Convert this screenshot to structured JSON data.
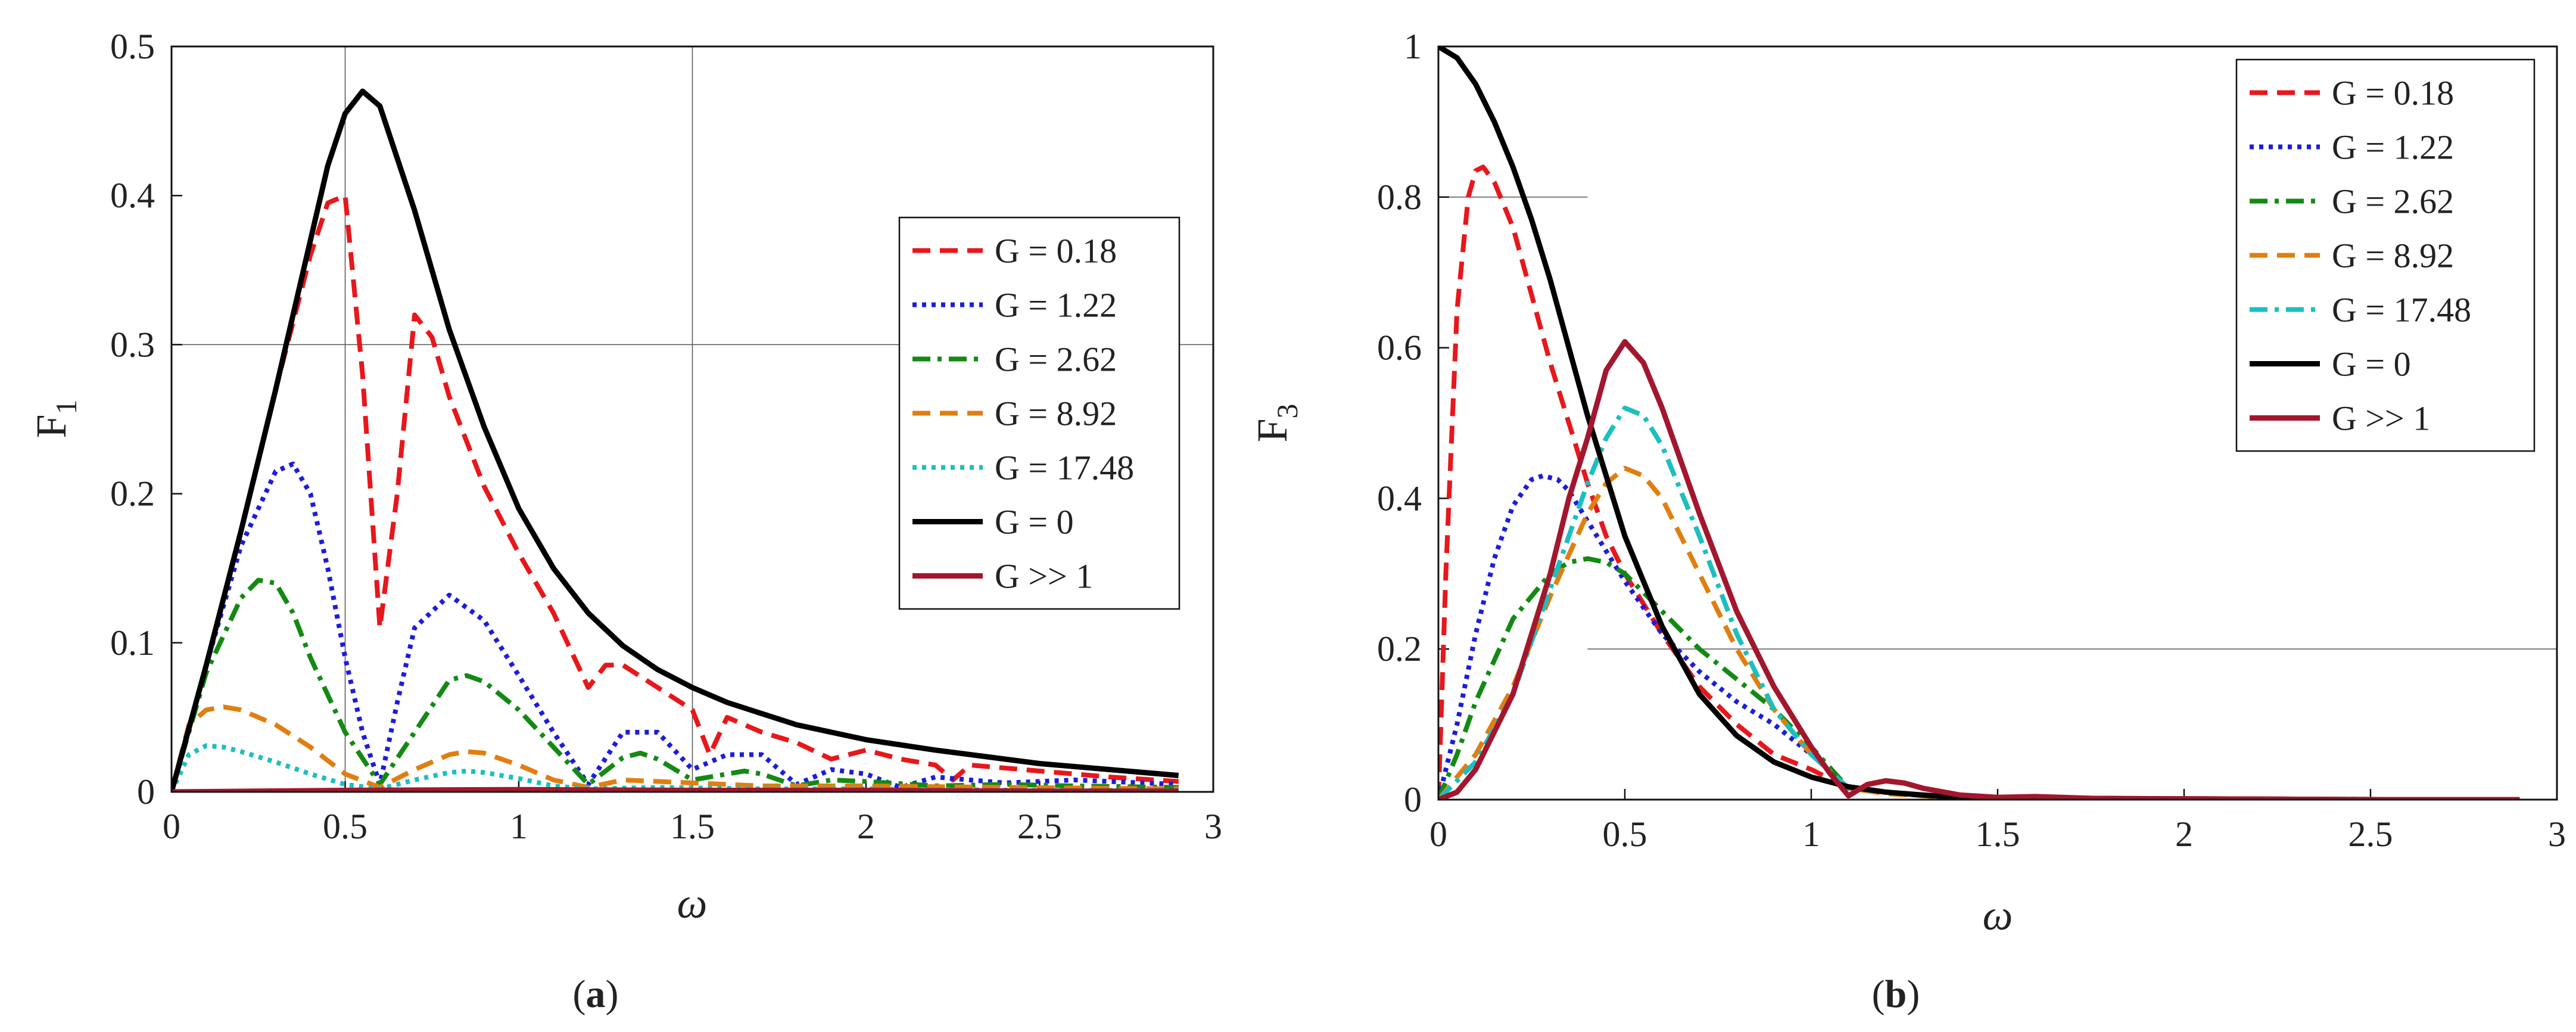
{
  "chart_data": [
    {
      "type": "line",
      "panel": "a",
      "caption_open": "(",
      "caption_letter": "a",
      "caption_close": ")",
      "xlabel": "ω",
      "ylabel_main": "F",
      "ylabel_sub": "1",
      "xlim": [
        0,
        3
      ],
      "ylim": [
        0,
        0.5
      ],
      "xticks": [
        0,
        0.5,
        1,
        1.5,
        2,
        2.5,
        3
      ],
      "xtick_labels": [
        "0",
        "0.5",
        "1",
        "1.5",
        "2",
        "2.5",
        "3"
      ],
      "yticks": [
        0,
        0.1,
        0.2,
        0.3,
        0.4,
        0.5
      ],
      "ytick_labels": [
        "0",
        "0.1",
        "0.2",
        "0.3",
        "0.4",
        "0.5"
      ],
      "grid": {
        "vertical_at": [
          0.5,
          1.5
        ],
        "horizontal_at": [
          0.3
        ]
      },
      "legend_position": "right",
      "series": [
        {
          "name": "G = 0.18",
          "color": "#e8171b",
          "dash": "dashed",
          "x": [
            0,
            0.1,
            0.2,
            0.3,
            0.4,
            0.45,
            0.5,
            0.55,
            0.6,
            0.65,
            0.7,
            0.75,
            0.8,
            0.9,
            1.0,
            1.1,
            1.2,
            1.25,
            1.3,
            1.4,
            1.5,
            1.55,
            1.6,
            1.7,
            1.8,
            1.9,
            2.0,
            2.1,
            2.2,
            2.25,
            2.3,
            2.5,
            2.7,
            2.9
          ],
          "y": [
            0,
            0.085,
            0.175,
            0.27,
            0.36,
            0.395,
            0.4,
            0.28,
            0.11,
            0.2,
            0.32,
            0.305,
            0.265,
            0.205,
            0.16,
            0.12,
            0.07,
            0.085,
            0.085,
            0.07,
            0.055,
            0.025,
            0.05,
            0.04,
            0.033,
            0.022,
            0.028,
            0.022,
            0.018,
            0.008,
            0.018,
            0.014,
            0.01,
            0.007
          ]
        },
        {
          "name": "G = 1.22",
          "color": "#1c1ce0",
          "dash": "dotted",
          "x": [
            0,
            0.1,
            0.2,
            0.3,
            0.35,
            0.4,
            0.45,
            0.5,
            0.55,
            0.6,
            0.65,
            0.7,
            0.8,
            0.9,
            1.0,
            1.1,
            1.2,
            1.3,
            1.4,
            1.5,
            1.6,
            1.7,
            1.8,
            1.9,
            2.0,
            2.1,
            2.2,
            2.4,
            2.6,
            2.9
          ],
          "y": [
            0,
            0.085,
            0.165,
            0.215,
            0.22,
            0.2,
            0.15,
            0.09,
            0.04,
            0.005,
            0.06,
            0.11,
            0.132,
            0.115,
            0.078,
            0.04,
            0.005,
            0.04,
            0.04,
            0.015,
            0.025,
            0.025,
            0.005,
            0.015,
            0.012,
            0.003,
            0.01,
            0.006,
            0.008,
            0.005
          ]
        },
        {
          "name": "G = 2.62",
          "color": "#138a13",
          "dash": "dashdot",
          "x": [
            0,
            0.1,
            0.2,
            0.25,
            0.3,
            0.35,
            0.4,
            0.5,
            0.6,
            0.7,
            0.8,
            0.85,
            0.9,
            1.0,
            1.1,
            1.2,
            1.3,
            1.35,
            1.4,
            1.5,
            1.6,
            1.65,
            1.7,
            1.8,
            1.9,
            2.0,
            2.2,
            2.4,
            2.6,
            2.9
          ],
          "y": [
            0,
            0.08,
            0.13,
            0.142,
            0.14,
            0.12,
            0.09,
            0.04,
            0.005,
            0.04,
            0.075,
            0.078,
            0.074,
            0.055,
            0.03,
            0.005,
            0.023,
            0.026,
            0.022,
            0.008,
            0.012,
            0.014,
            0.012,
            0.004,
            0.008,
            0.007,
            0.004,
            0.005,
            0.004,
            0.003
          ]
        },
        {
          "name": "G = 8.92",
          "color": "#e07f10",
          "dash": "dashed",
          "x": [
            0,
            0.05,
            0.1,
            0.15,
            0.2,
            0.3,
            0.4,
            0.5,
            0.6,
            0.7,
            0.8,
            0.85,
            0.9,
            1.0,
            1.1,
            1.2,
            1.3,
            1.5,
            1.7,
            2.0,
            2.4,
            2.9
          ],
          "y": [
            0,
            0.045,
            0.055,
            0.057,
            0.055,
            0.045,
            0.03,
            0.012,
            0.003,
            0.015,
            0.025,
            0.027,
            0.026,
            0.018,
            0.008,
            0.003,
            0.008,
            0.006,
            0.004,
            0.004,
            0.003,
            0.002
          ]
        },
        {
          "name": "G = 17.48",
          "color": "#1cbfbf",
          "dash": "dotted",
          "x": [
            0,
            0.05,
            0.1,
            0.15,
            0.2,
            0.3,
            0.4,
            0.5,
            0.6,
            0.7,
            0.8,
            0.85,
            0.9,
            1.0,
            1.1,
            1.2,
            1.4,
            1.7,
            2.0,
            2.5,
            2.9
          ],
          "y": [
            0,
            0.025,
            0.031,
            0.03,
            0.027,
            0.02,
            0.012,
            0.005,
            0.002,
            0.008,
            0.013,
            0.014,
            0.013,
            0.009,
            0.004,
            0.002,
            0.003,
            0.002,
            0.002,
            0.001,
            0.001
          ]
        },
        {
          "name": "G = 0",
          "color": "#000000",
          "dash": "solid",
          "x": [
            0,
            0.1,
            0.2,
            0.3,
            0.4,
            0.45,
            0.5,
            0.55,
            0.6,
            0.7,
            0.8,
            0.9,
            1.0,
            1.1,
            1.2,
            1.3,
            1.4,
            1.5,
            1.6,
            1.8,
            2.0,
            2.2,
            2.5,
            2.9
          ],
          "y": [
            0,
            0.085,
            0.175,
            0.27,
            0.37,
            0.42,
            0.455,
            0.47,
            0.46,
            0.39,
            0.31,
            0.245,
            0.19,
            0.15,
            0.12,
            0.098,
            0.082,
            0.07,
            0.06,
            0.045,
            0.035,
            0.028,
            0.019,
            0.011
          ]
        },
        {
          "name": "G >> 1",
          "color": "#a3172e",
          "dash": "solid",
          "x": [
            0,
            0.5,
            1.0,
            1.5,
            2.0,
            2.5,
            2.9
          ],
          "y": [
            0,
            0.001,
            0.0015,
            0.001,
            0.001,
            0.0005,
            0.0005
          ]
        }
      ]
    },
    {
      "type": "line",
      "panel": "b",
      "caption_open": "(",
      "caption_letter": "b",
      "caption_close": ")",
      "xlabel": "ω",
      "ylabel_main": "F",
      "ylabel_sub": "3",
      "xlim": [
        0,
        3
      ],
      "ylim": [
        0,
        1
      ],
      "xticks": [
        0,
        0.5,
        1,
        1.5,
        2,
        2.5,
        3
      ],
      "xtick_labels": [
        "0",
        "0.5",
        "1",
        "1.5",
        "2",
        "2.5",
        "3"
      ],
      "yticks": [
        0,
        0.2,
        0.4,
        0.6,
        0.8,
        1
      ],
      "ytick_labels": [
        "0",
        "0.2",
        "0.4",
        "0.6",
        "0.8",
        "1"
      ],
      "grid": {
        "partial_lines": [
          {
            "y": 0.8,
            "x_from": 0,
            "x_to": 0.4
          },
          {
            "y": 0.2,
            "x_from": 0.4,
            "x_to": 3
          }
        ]
      },
      "legend_position": "top-right",
      "series": [
        {
          "name": "G = 0.18",
          "color": "#e8171b",
          "dash": "dashed",
          "x": [
            0,
            0.02,
            0.05,
            0.08,
            0.1,
            0.12,
            0.15,
            0.2,
            0.25,
            0.3,
            0.35,
            0.4,
            0.45,
            0.5,
            0.6,
            0.7,
            0.8,
            0.9,
            1.0,
            1.1,
            1.2,
            1.3,
            1.5,
            2.0,
            2.9
          ],
          "y": [
            0,
            0.3,
            0.65,
            0.8,
            0.835,
            0.84,
            0.82,
            0.76,
            0.67,
            0.58,
            0.5,
            0.42,
            0.35,
            0.3,
            0.22,
            0.15,
            0.1,
            0.06,
            0.04,
            0.015,
            0.01,
            0.005,
            0.002,
            0.001,
            0
          ]
        },
        {
          "name": "G = 1.22",
          "color": "#1c1ce0",
          "dash": "dotted",
          "x": [
            0,
            0.05,
            0.1,
            0.15,
            0.2,
            0.25,
            0.28,
            0.32,
            0.35,
            0.4,
            0.5,
            0.6,
            0.7,
            0.8,
            0.9,
            1.0,
            1.1,
            1.2,
            1.4,
            2.0,
            2.9
          ],
          "y": [
            0,
            0.1,
            0.22,
            0.32,
            0.39,
            0.425,
            0.43,
            0.425,
            0.41,
            0.37,
            0.29,
            0.22,
            0.17,
            0.13,
            0.1,
            0.06,
            0.015,
            0.01,
            0.003,
            0.001,
            0
          ]
        },
        {
          "name": "G = 2.62",
          "color": "#138a13",
          "dash": "dashdot",
          "x": [
            0,
            0.05,
            0.1,
            0.2,
            0.3,
            0.35,
            0.4,
            0.45,
            0.5,
            0.6,
            0.7,
            0.8,
            0.9,
            1.0,
            1.1,
            1.2,
            1.4,
            2.0,
            2.9
          ],
          "y": [
            0,
            0.06,
            0.13,
            0.24,
            0.3,
            0.315,
            0.32,
            0.315,
            0.3,
            0.25,
            0.2,
            0.16,
            0.12,
            0.07,
            0.015,
            0.01,
            0.003,
            0.001,
            0
          ]
        },
        {
          "name": "G = 8.92",
          "color": "#e07f10",
          "dash": "dashed",
          "x": [
            0,
            0.1,
            0.2,
            0.3,
            0.4,
            0.45,
            0.5,
            0.55,
            0.6,
            0.7,
            0.8,
            0.9,
            1.0,
            1.1,
            1.2,
            1.4,
            2.0,
            2.9
          ],
          "y": [
            0,
            0.06,
            0.15,
            0.27,
            0.38,
            0.42,
            0.44,
            0.43,
            0.4,
            0.3,
            0.2,
            0.12,
            0.06,
            0.015,
            0.008,
            0.002,
            0.001,
            0
          ]
        },
        {
          "name": "G = 17.48",
          "color": "#1cbfbf",
          "dash": "dashdot",
          "x": [
            0,
            0.1,
            0.2,
            0.3,
            0.4,
            0.45,
            0.5,
            0.55,
            0.6,
            0.7,
            0.8,
            0.9,
            1.0,
            1.1,
            1.2,
            1.4,
            2.0,
            2.9
          ],
          "y": [
            0,
            0.05,
            0.14,
            0.28,
            0.42,
            0.48,
            0.52,
            0.51,
            0.47,
            0.35,
            0.22,
            0.12,
            0.06,
            0.015,
            0.01,
            0.002,
            0.001,
            0
          ]
        },
        {
          "name": "G = 0",
          "color": "#000000",
          "dash": "solid",
          "x": [
            0,
            0.05,
            0.1,
            0.15,
            0.2,
            0.25,
            0.3,
            0.35,
            0.4,
            0.45,
            0.5,
            0.6,
            0.7,
            0.8,
            0.9,
            1.0,
            1.1,
            1.2,
            1.3,
            1.4,
            1.5,
            2.0,
            2.5,
            2.9
          ],
          "y": [
            1.0,
            0.985,
            0.95,
            0.9,
            0.84,
            0.77,
            0.69,
            0.6,
            0.51,
            0.43,
            0.35,
            0.23,
            0.14,
            0.085,
            0.05,
            0.03,
            0.017,
            0.01,
            0.006,
            0.003,
            0.002,
            0.001,
            0,
            0
          ]
        },
        {
          "name": "G >> 1",
          "color": "#a3172e",
          "dash": "solid",
          "x": [
            0,
            0.05,
            0.1,
            0.2,
            0.3,
            0.35,
            0.4,
            0.45,
            0.5,
            0.55,
            0.6,
            0.7,
            0.8,
            0.9,
            1.0,
            1.05,
            1.1,
            1.15,
            1.2,
            1.25,
            1.3,
            1.4,
            1.5,
            1.6,
            1.8,
            2.0,
            2.5,
            2.9
          ],
          "y": [
            0,
            0.01,
            0.04,
            0.14,
            0.3,
            0.4,
            0.48,
            0.57,
            0.608,
            0.58,
            0.52,
            0.38,
            0.25,
            0.15,
            0.07,
            0.035,
            0.005,
            0.02,
            0.025,
            0.022,
            0.015,
            0.006,
            0.003,
            0.004,
            0.001,
            0.001,
            0,
            0
          ]
        }
      ]
    }
  ]
}
